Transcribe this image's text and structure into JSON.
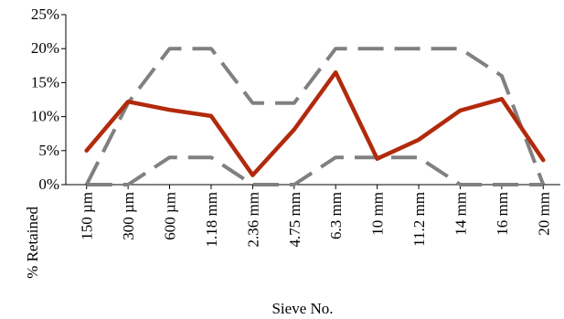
{
  "chart_data": {
    "type": "line",
    "categories": [
      "150 µm",
      "300 µm",
      "600 µm",
      "1.18 mm",
      "2.36 mm",
      "4.75 mm",
      "6.3 mm",
      "10 mm",
      "11.2 mm",
      "14 mm",
      "16 mm",
      "20 mm"
    ],
    "ylim": [
      0,
      25
    ],
    "y_ticks": [
      0,
      5,
      10,
      15,
      20,
      25
    ],
    "y_tick_labels": [
      "0%",
      "5%",
      "10%",
      "15%",
      "20%",
      "25%"
    ],
    "xlabel": "Sieve No.",
    "ylabel": "% Retained",
    "grid": false,
    "legend": "none",
    "series": [
      {
        "values": [
          5.0,
          12.2,
          11.0,
          10.1,
          1.4,
          8.1,
          16.5,
          3.8,
          6.6,
          10.9,
          12.6,
          3.6
        ],
        "color": "#b22a0c",
        "style": "solid"
      },
      {
        "values": [
          0,
          12.0,
          20.0,
          20.0,
          12.0,
          12.0,
          20.0,
          20.0,
          20.0,
          20.0,
          16.0,
          0
        ],
        "color": "#808080",
        "style": "dashed"
      },
      {
        "values": [
          0,
          0,
          4.0,
          4.0,
          0,
          0,
          4.0,
          4.0,
          4.0,
          0,
          0,
          0
        ],
        "color": "#808080",
        "style": "dashed"
      }
    ]
  }
}
